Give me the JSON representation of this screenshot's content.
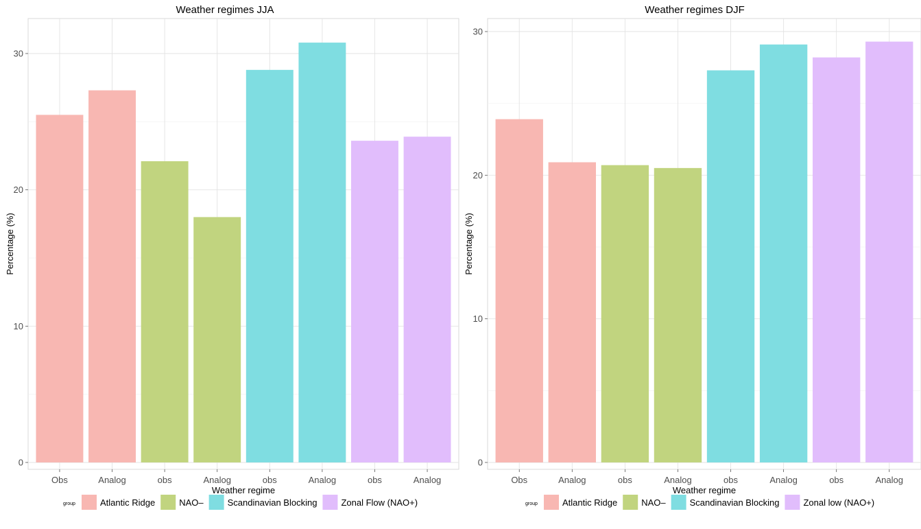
{
  "chart_data": [
    {
      "type": "bar",
      "title": "Weather regimes JJA",
      "xlabel": "Weather regime",
      "ylabel": "Percentage (%)",
      "ylim": [
        0,
        30
      ],
      "y_ticks": [
        0,
        10,
        20,
        30
      ],
      "grid": true,
      "legend_position": "bottom",
      "legend_title": "group",
      "categories": [
        "Obs",
        "Analog",
        "obs",
        "Analog",
        "obs",
        "Analog",
        "obs",
        "Analog"
      ],
      "values": [
        25.5,
        27.3,
        22.1,
        18.0,
        28.8,
        30.8,
        23.6,
        23.9
      ],
      "groups": [
        "Atlantic Ridge",
        "Atlantic Ridge",
        "NAO–",
        "NAO–",
        "Scandinavian Blocking",
        "Scandinavian Blocking",
        "Zonal Flow (NAO+)",
        "Zonal Flow (NAO+)"
      ],
      "legend": [
        {
          "label": "Atlantic Ridge",
          "color": "#f8b7b2"
        },
        {
          "label": "NAO–",
          "color": "#c1d47f"
        },
        {
          "label": "Scandinavian Blocking",
          "color": "#7fdde1"
        },
        {
          "label": "Zonal Flow (NAO+)",
          "color": "#e1bdfc"
        }
      ]
    },
    {
      "type": "bar",
      "title": "Weather regimes DJF",
      "xlabel": "Weather regime",
      "ylabel": "Percentage (%)",
      "ylim": [
        0,
        30
      ],
      "y_ticks": [
        0,
        10,
        20,
        30
      ],
      "grid": true,
      "legend_position": "bottom",
      "legend_title": "group",
      "categories": [
        "Obs",
        "Analog",
        "obs",
        "Analog",
        "obs",
        "Analog",
        "obs",
        "Analog"
      ],
      "values": [
        23.9,
        20.9,
        20.7,
        20.5,
        27.3,
        29.1,
        28.2,
        29.3
      ],
      "groups": [
        "Atlantic Ridge",
        "Atlantic Ridge",
        "NAO–",
        "NAO–",
        "Scandinavian Blocking",
        "Scandinavian Blocking",
        "Zonal low (NAO+)",
        "Zonal low (NAO+)"
      ],
      "legend": [
        {
          "label": "Atlantic Ridge",
          "color": "#f8b7b2"
        },
        {
          "label": "NAO–",
          "color": "#c1d47f"
        },
        {
          "label": "Scandinavian Blocking",
          "color": "#7fdde1"
        },
        {
          "label": "Zonal low (NAO+)",
          "color": "#e1bdfc"
        }
      ]
    }
  ]
}
